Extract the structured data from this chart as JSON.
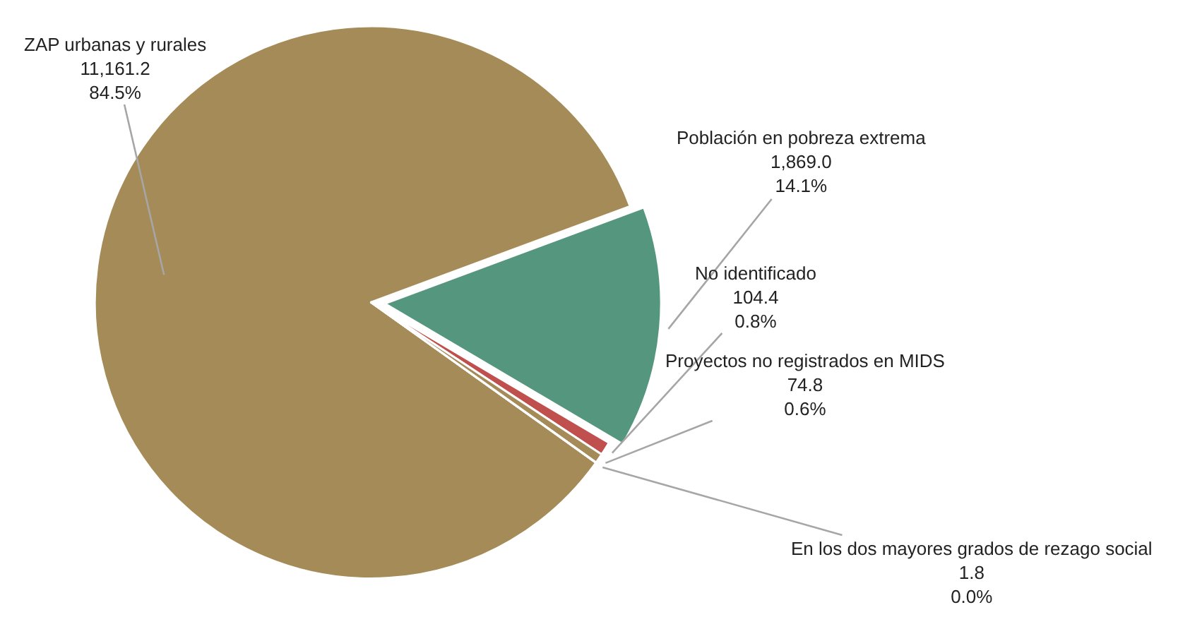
{
  "chart_data": {
    "type": "pie",
    "categories": [
      "ZAP urbanas y rurales",
      "Población en pobreza extrema",
      "No identificado",
      "Proyectos no registrados en MIDS",
      "En los dos mayores grados de rezago social"
    ],
    "values": [
      11161.2,
      1869.0,
      104.4,
      74.8,
      1.8
    ],
    "colors": [
      "#a58b57",
      "#55967e",
      "#c0504d",
      "#a58b57",
      "#8c7a52"
    ],
    "value_labels": [
      "11,161.2\n84.5%",
      "1,869.0\n14.1%",
      "104.4\n0.8%",
      "74.8\n0.6%",
      "1.8\n0.0%"
    ],
    "legend": false
  }
}
